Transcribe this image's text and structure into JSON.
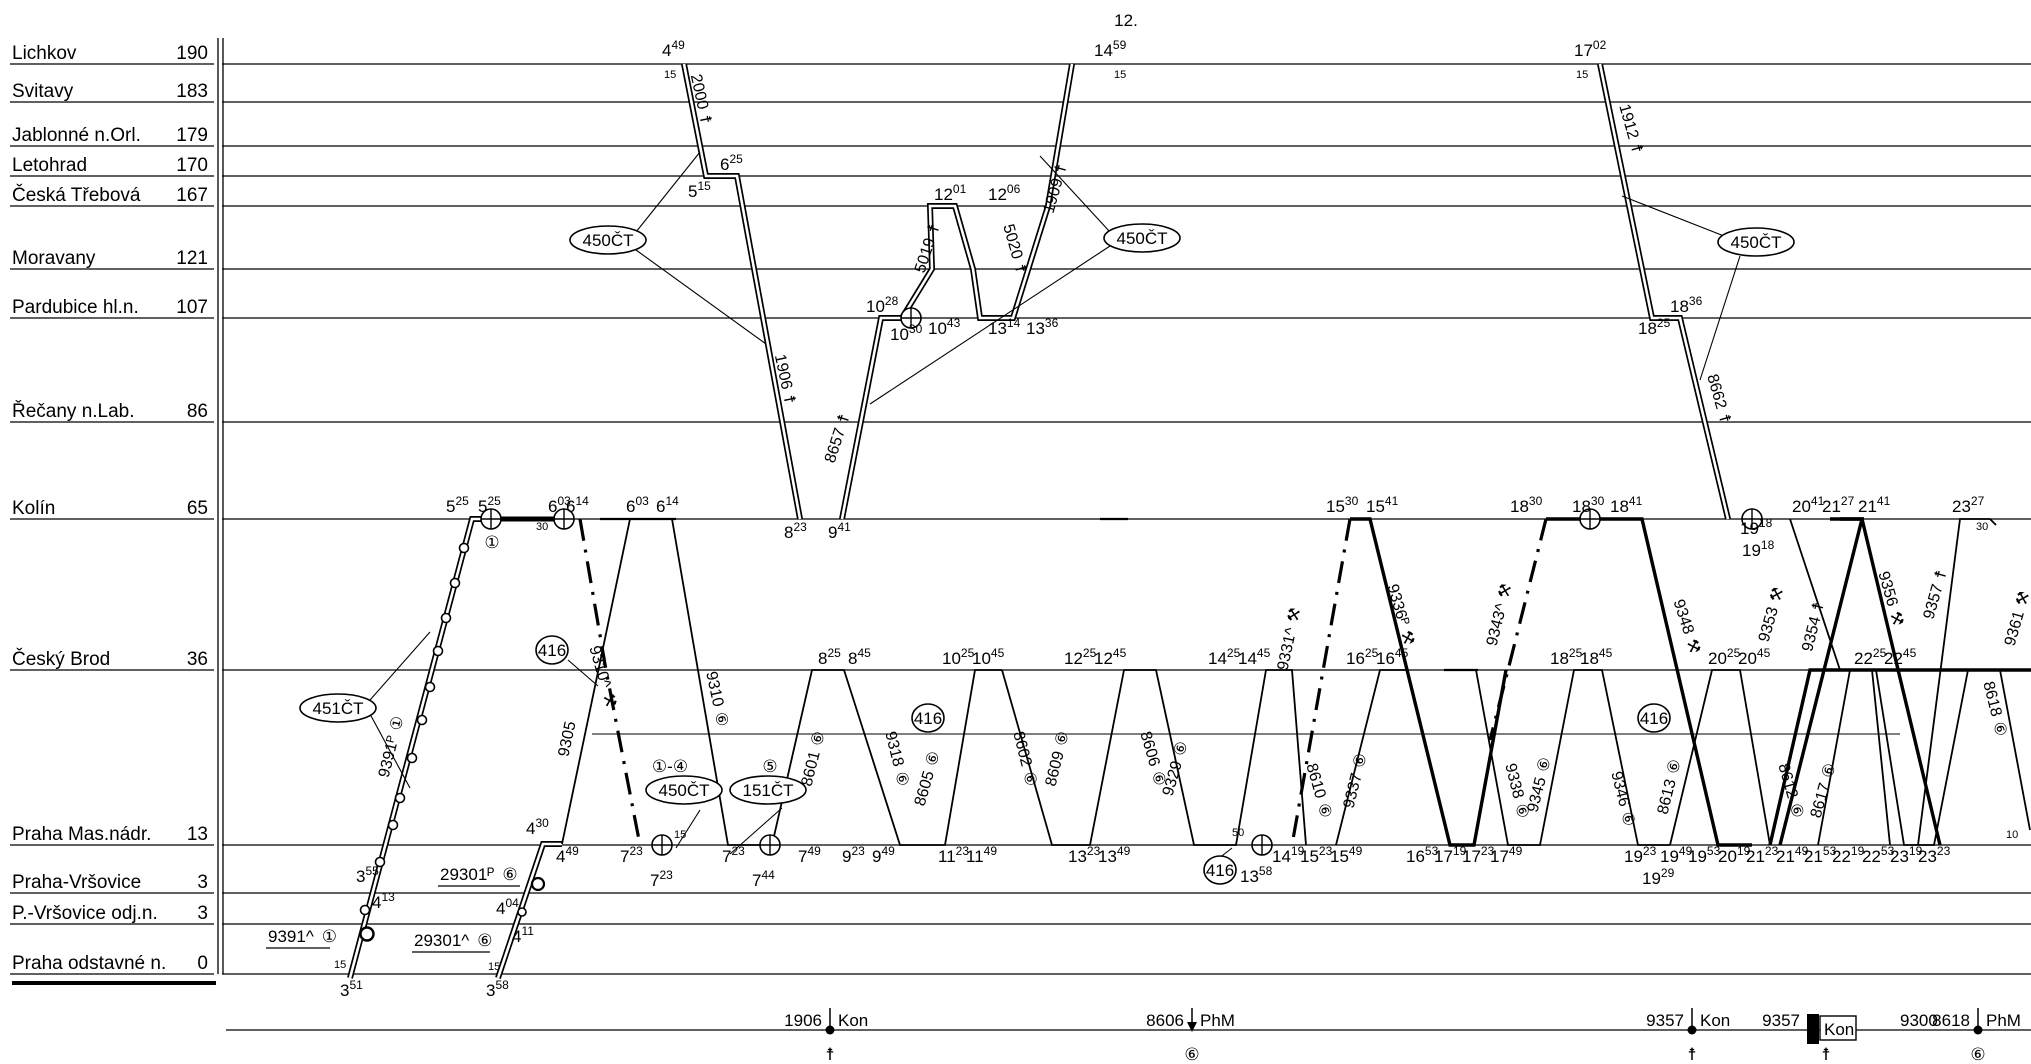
{
  "page_number": "12.",
  "stations": [
    {
      "name": "Lichkov",
      "km": "190"
    },
    {
      "name": "Svitavy",
      "km": "183"
    },
    {
      "name": "Jablonné n.Orl.",
      "km": "179"
    },
    {
      "name": "Letohrad",
      "km": "170"
    },
    {
      "name": "Česká Třebová",
      "km": "167"
    },
    {
      "name": "Moravany",
      "km": "121"
    },
    {
      "name": "Pardubice hl.n.",
      "km": "107"
    },
    {
      "name": "Řečany n.Lab.",
      "km": "86"
    },
    {
      "name": "Kolín",
      "km": "65"
    },
    {
      "name": "Český Brod",
      "km": "36"
    },
    {
      "name": "Praha Mas.nádr.",
      "km": "13"
    },
    {
      "name": "Praha-Vršovice",
      "km": "3"
    },
    {
      "name": "P.-Vršovice odj.n.",
      "km": "3"
    },
    {
      "name": "Praha odstavné n.",
      "km": "0"
    }
  ],
  "trains": [
    {
      "number": "2000",
      "mark": "☨"
    },
    {
      "number": "1906",
      "mark": "☨"
    },
    {
      "number": "8657",
      "mark": "☨"
    },
    {
      "number": "5019",
      "mark": "☨"
    },
    {
      "number": "5020",
      "mark": "☨"
    },
    {
      "number": "1909",
      "mark": "☨"
    },
    {
      "number": "1912",
      "mark": "☨"
    },
    {
      "number": "8662",
      "mark": "☨"
    },
    {
      "number": "9391ᴾ",
      "mark": "①"
    },
    {
      "number": "9305",
      "mark": ""
    },
    {
      "number": "9310^",
      "mark": "⚒"
    },
    {
      "number": "9310",
      "mark": "⑥"
    },
    {
      "number": "8601",
      "mark": "⑥"
    },
    {
      "number": "9318",
      "mark": "⑥"
    },
    {
      "number": "8605",
      "mark": "⑥"
    },
    {
      "number": "8602",
      "mark": "⑥"
    },
    {
      "number": "8609",
      "mark": "⑥"
    },
    {
      "number": "8606",
      "mark": "⑥"
    },
    {
      "number": "9329",
      "mark": "⑥"
    },
    {
      "number": "9331^",
      "mark": "⚒"
    },
    {
      "number": "8610",
      "mark": "⑥"
    },
    {
      "number": "9336ᴾ",
      "mark": "⚒"
    },
    {
      "number": "9337",
      "mark": "⑥"
    },
    {
      "number": "9343^",
      "mark": "⚒"
    },
    {
      "number": "9338",
      "mark": "⑥"
    },
    {
      "number": "9345",
      "mark": "⑥"
    },
    {
      "number": "9348",
      "mark": "⚒"
    },
    {
      "number": "9346",
      "mark": "⑥"
    },
    {
      "number": "8613",
      "mark": "⑥"
    },
    {
      "number": "9353",
      "mark": "⚒"
    },
    {
      "number": "9354",
      "mark": "☨"
    },
    {
      "number": "9356",
      "mark": "⚒"
    },
    {
      "number": "9357",
      "mark": "☨"
    },
    {
      "number": "8612",
      "mark": "⑥"
    },
    {
      "number": "8617",
      "mark": "⑥"
    },
    {
      "number": "8618",
      "mark": "⑥"
    },
    {
      "number": "9361",
      "mark": "⚒"
    }
  ],
  "side_labels": [
    {
      "number": "29301ᴾ",
      "mark": "⑥"
    },
    {
      "number": "9391^",
      "mark": "①"
    },
    {
      "number": "29301^",
      "mark": "⑥"
    }
  ],
  "ovals": [
    "450ČT",
    "450ČT",
    "450ČT",
    "451ČT",
    "416",
    "450ČT",
    "151ČT",
    "416",
    "416",
    "416"
  ],
  "day_marks": [
    "①",
    "①-④",
    "⑤"
  ],
  "times": [
    {
      "h": "4",
      "m": "49"
    },
    {
      "h": "14",
      "m": "59"
    },
    {
      "h": "17",
      "m": "02"
    },
    {
      "h": "6",
      "m": "25"
    },
    {
      "h": "5",
      "m": "15"
    },
    {
      "h": "12",
      "m": "01"
    },
    {
      "h": "12",
      "m": "06"
    },
    {
      "h": "10",
      "m": "28"
    },
    {
      "h": "10",
      "m": "30"
    },
    {
      "h": "10",
      "m": "43"
    },
    {
      "h": "13",
      "m": "14"
    },
    {
      "h": "13",
      "m": "36"
    },
    {
      "h": "18",
      "m": "25"
    },
    {
      "h": "18",
      "m": "36"
    },
    {
      "h": "8",
      "m": "23"
    },
    {
      "h": "9",
      "m": "41"
    },
    {
      "h": "5",
      "m": "25"
    },
    {
      "h": "5",
      "m": "25"
    },
    {
      "h": "6",
      "m": "03"
    },
    {
      "h": "6",
      "m": "14"
    },
    {
      "h": "6",
      "m": "03"
    },
    {
      "h": "6",
      "m": "14"
    },
    {
      "h": "15",
      "m": "30"
    },
    {
      "h": "15",
      "m": "41"
    },
    {
      "h": "18",
      "m": "30"
    },
    {
      "h": "18",
      "m": "30"
    },
    {
      "h": "18",
      "m": "41"
    },
    {
      "h": "19",
      "m": "18"
    },
    {
      "h": "19",
      "m": "18"
    },
    {
      "h": "20",
      "m": "41"
    },
    {
      "h": "21",
      "m": "27"
    },
    {
      "h": "21",
      "m": "41"
    },
    {
      "h": "23",
      "m": "27"
    },
    {
      "h": "8",
      "m": "25"
    },
    {
      "h": "8",
      "m": "45"
    },
    {
      "h": "10",
      "m": "25"
    },
    {
      "h": "10",
      "m": "45"
    },
    {
      "h": "12",
      "m": "25"
    },
    {
      "h": "12",
      "m": "45"
    },
    {
      "h": "14",
      "m": "25"
    },
    {
      "h": "14",
      "m": "45"
    },
    {
      "h": "16",
      "m": "25"
    },
    {
      "h": "16",
      "m": "45"
    },
    {
      "h": "18",
      "m": "25"
    },
    {
      "h": "18",
      "m": "45"
    },
    {
      "h": "20",
      "m": "25"
    },
    {
      "h": "20",
      "m": "45"
    },
    {
      "h": "22",
      "m": "25"
    },
    {
      "h": "22",
      "m": "45"
    },
    {
      "h": "4",
      "m": "30"
    },
    {
      "h": "4",
      "m": "49"
    },
    {
      "h": "7",
      "m": "23"
    },
    {
      "h": "7",
      "m": "23"
    },
    {
      "h": "7",
      "m": "23"
    },
    {
      "h": "7",
      "m": "44"
    },
    {
      "h": "7",
      "m": "49"
    },
    {
      "h": "9",
      "m": "23"
    },
    {
      "h": "9",
      "m": "49"
    },
    {
      "h": "11",
      "m": "23"
    },
    {
      "h": "11",
      "m": "49"
    },
    {
      "h": "13",
      "m": "23"
    },
    {
      "h": "13",
      "m": "49"
    },
    {
      "h": "13",
      "m": "58"
    },
    {
      "h": "14",
      "m": "19"
    },
    {
      "h": "15",
      "m": "23"
    },
    {
      "h": "15",
      "m": "49"
    },
    {
      "h": "16",
      "m": "53"
    },
    {
      "h": "17",
      "m": "19"
    },
    {
      "h": "17",
      "m": "23"
    },
    {
      "h": "17",
      "m": "49"
    },
    {
      "h": "19",
      "m": "23"
    },
    {
      "h": "19",
      "m": "29"
    },
    {
      "h": "19",
      "m": "49"
    },
    {
      "h": "19",
      "m": "53"
    },
    {
      "h": "20",
      "m": "19"
    },
    {
      "h": "21",
      "m": "23"
    },
    {
      "h": "21",
      "m": "49"
    },
    {
      "h": "21",
      "m": "53"
    },
    {
      "h": "22",
      "m": "19"
    },
    {
      "h": "22",
      "m": "53"
    },
    {
      "h": "23",
      "m": "19"
    },
    {
      "h": "23",
      "m": "23"
    },
    {
      "h": "3",
      "m": "55"
    },
    {
      "h": "4",
      "m": "13"
    },
    {
      "h": "4",
      "m": "04"
    },
    {
      "h": "4",
      "m": "11"
    },
    {
      "h": "3",
      "m": "51"
    },
    {
      "h": "3",
      "m": "58"
    }
  ],
  "small_minutes": [
    "15",
    "15",
    "15",
    "30",
    "15",
    "50",
    "30",
    "10",
    "15",
    "15"
  ],
  "turn_events": [
    {
      "train": "1906",
      "action": "Kon",
      "mark": "☨"
    },
    {
      "train": "8606",
      "action": "PhM",
      "mark": "⑥"
    },
    {
      "train": "9357",
      "action": "Kon",
      "mark": "☨"
    },
    {
      "train": "9357",
      "action": "Kon",
      "mark": "☨"
    },
    {
      "train": "9300",
      "action": "",
      "mark": ""
    },
    {
      "train": "8618",
      "action": "PhM",
      "mark": "⑥"
    }
  ]
}
